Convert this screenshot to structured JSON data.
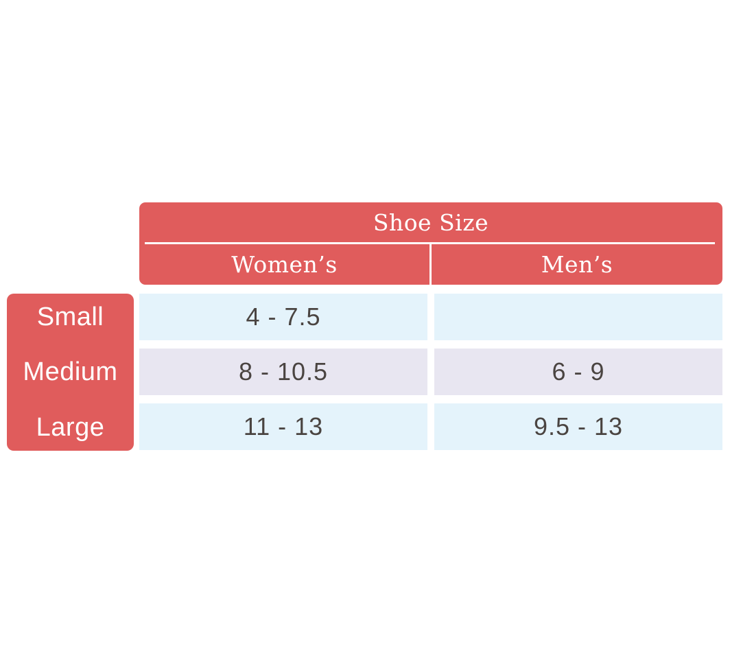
{
  "chart_data": {
    "type": "table",
    "title": "Shoe Size",
    "columns": [
      "Women’s",
      "Men’s"
    ],
    "row_labels": [
      "Small",
      "Medium",
      "Large"
    ],
    "cells": [
      [
        "4 - 7.5",
        ""
      ],
      [
        "8 - 10.5",
        "6 - 9"
      ],
      [
        "11 - 13",
        "9.5 - 13"
      ]
    ]
  },
  "colors": {
    "accent_red": "#e05c5c",
    "row_blue": "#e4f3fb",
    "row_lavender": "#e8e6f1",
    "cell_text": "#4a4441",
    "header_text": "#ffffff",
    "background": "#ffffff"
  }
}
